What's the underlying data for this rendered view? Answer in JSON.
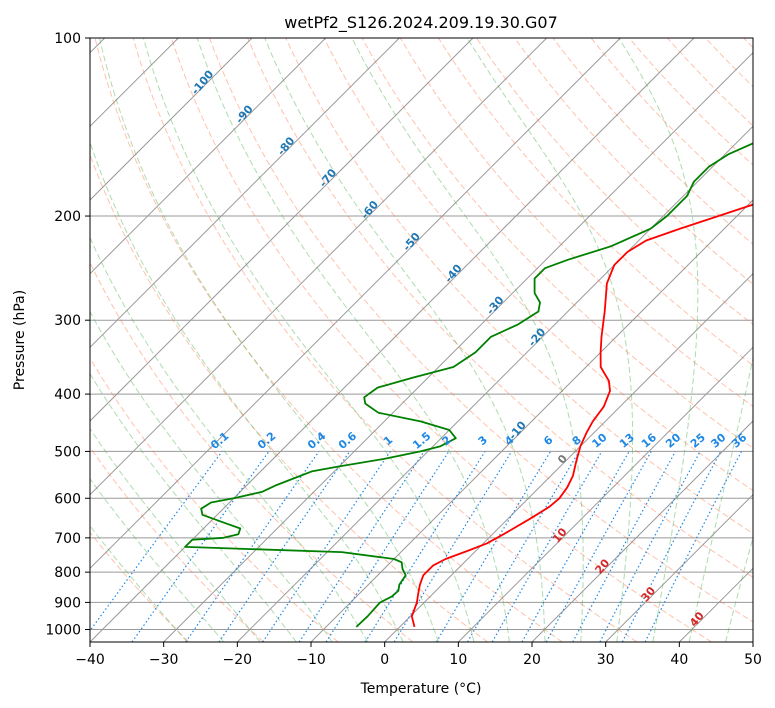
{
  "chart_data": {
    "type": "line",
    "subtype": "skew-T log-P diagram",
    "title": "wetPf2_S126.2024.209.19.30.G07",
    "xlabel": "Temperature (°C)",
    "ylabel": "Pressure (hPa)",
    "xlim": [
      -40,
      50
    ],
    "ylim": [
      1050,
      100
    ],
    "y_scale": "log",
    "grid": true,
    "x_ticks": [
      "−40",
      "−30",
      "−20",
      "−10",
      "0",
      "10",
      "20",
      "30",
      "40",
      "50"
    ],
    "y_ticks": [
      "1000",
      "900",
      "800",
      "700",
      "600",
      "500",
      "400",
      "300",
      "200",
      "100"
    ],
    "dry_adiabat_labels": [
      "-100",
      "-90",
      "-80",
      "-70",
      "-60",
      "-50",
      "-40",
      "-30",
      "-20",
      "-10",
      "0",
      "10",
      "20",
      "30",
      "40"
    ],
    "mixing_ratio_labels": [
      "0.1",
      "0.2",
      "0.4",
      "0.6",
      "1",
      "1.5",
      "2",
      "3",
      "4",
      "6",
      "8",
      "10",
      "13",
      "16",
      "20",
      "25",
      "30",
      "36"
    ],
    "colors": {
      "temperature": "#ff0000",
      "dewpoint": "#008000",
      "isotherm": "#999999",
      "dry_adiabat": "#ff6633",
      "moist_adiabat": "#4caf50",
      "mixing_ratio": "#1e88e5",
      "label_blue": "#1f77b4",
      "label_red": "#d62728"
    },
    "series": [
      {
        "key": "temperature",
        "points": [
          [
            2,
            990
          ],
          [
            0.2,
            950
          ],
          [
            -0.5,
            920
          ],
          [
            -1,
            900
          ],
          [
            -2,
            870
          ],
          [
            -3,
            840
          ],
          [
            -3.8,
            810
          ],
          [
            -3.8,
            780
          ],
          [
            -3,
            760
          ],
          [
            -1,
            735
          ],
          [
            0.5,
            715
          ],
          [
            1.5,
            690
          ],
          [
            3,
            650
          ],
          [
            4,
            620
          ],
          [
            4.2,
            600
          ],
          [
            3.8,
            575
          ],
          [
            3,
            550
          ],
          [
            1.5,
            520
          ],
          [
            0,
            490
          ],
          [
            -1,
            465
          ],
          [
            -1.7,
            445
          ],
          [
            -2.2,
            420
          ],
          [
            -3.5,
            395
          ],
          [
            -5,
            380
          ],
          [
            -8,
            360
          ],
          [
            -10,
            340
          ],
          [
            -12,
            320
          ],
          [
            -15,
            290
          ],
          [
            -18.5,
            260
          ],
          [
            -20,
            242
          ],
          [
            -20,
            230
          ],
          [
            -19,
            220
          ],
          [
            -16,
            210
          ],
          [
            -12.5,
            200
          ],
          [
            -10,
            193
          ],
          [
            -7,
            185
          ],
          [
            -3,
            175
          ],
          [
            1,
            160
          ],
          [
            5,
            145
          ],
          [
            9,
            130
          ],
          [
            12,
            120
          ],
          [
            16,
            110
          ],
          [
            19,
            100
          ]
        ]
      },
      {
        "key": "dewpoint",
        "points": [
          [
            -5.9,
            990
          ],
          [
            -5.8,
            950
          ],
          [
            -6,
            900
          ],
          [
            -5.2,
            880
          ],
          [
            -5.1,
            860
          ],
          [
            -5.8,
            840
          ],
          [
            -6.2,
            810
          ],
          [
            -7.5,
            790
          ],
          [
            -8.5,
            770
          ],
          [
            -10,
            760
          ],
          [
            -18,
            740
          ],
          [
            -40,
            725
          ],
          [
            -40,
            705
          ],
          [
            -36,
            700
          ],
          [
            -34.5,
            690
          ],
          [
            -35,
            675
          ],
          [
            -38,
            660
          ],
          [
            -42,
            640
          ],
          [
            -43,
            625
          ],
          [
            -42.5,
            610
          ],
          [
            -40,
            600
          ],
          [
            -37,
            585
          ],
          [
            -36,
            570
          ],
          [
            -35,
            560
          ],
          [
            -34,
            550
          ],
          [
            -33,
            540
          ],
          [
            -30,
            530
          ],
          [
            -25,
            515
          ],
          [
            -21,
            500
          ],
          [
            -19,
            490
          ],
          [
            -18,
            475
          ],
          [
            -20,
            460
          ],
          [
            -25,
            445
          ],
          [
            -32,
            430
          ],
          [
            -35,
            415
          ],
          [
            -36,
            405
          ],
          [
            -35.5,
            390
          ],
          [
            -32,
            375
          ],
          [
            -28,
            360
          ],
          [
            -27,
            340
          ],
          [
            -27,
            320
          ],
          [
            -25,
            305
          ],
          [
            -24,
            290
          ],
          [
            -25,
            280
          ],
          [
            -27,
            270
          ],
          [
            -29,
            255
          ],
          [
            -29,
            245
          ],
          [
            -27,
            237
          ],
          [
            -23,
            225
          ],
          [
            -20,
            210
          ],
          [
            -19.5,
            200
          ],
          [
            -19.5,
            185
          ],
          [
            -20.5,
            175
          ],
          [
            -20.5,
            165
          ],
          [
            -19.5,
            157
          ],
          [
            -17.5,
            150
          ],
          [
            -16,
            143
          ],
          [
            -13,
            135
          ],
          [
            -11,
            128
          ],
          [
            -10,
            120
          ],
          [
            -8,
            110
          ],
          [
            -6,
            103
          ],
          [
            -5,
            100
          ]
        ]
      }
    ]
  }
}
